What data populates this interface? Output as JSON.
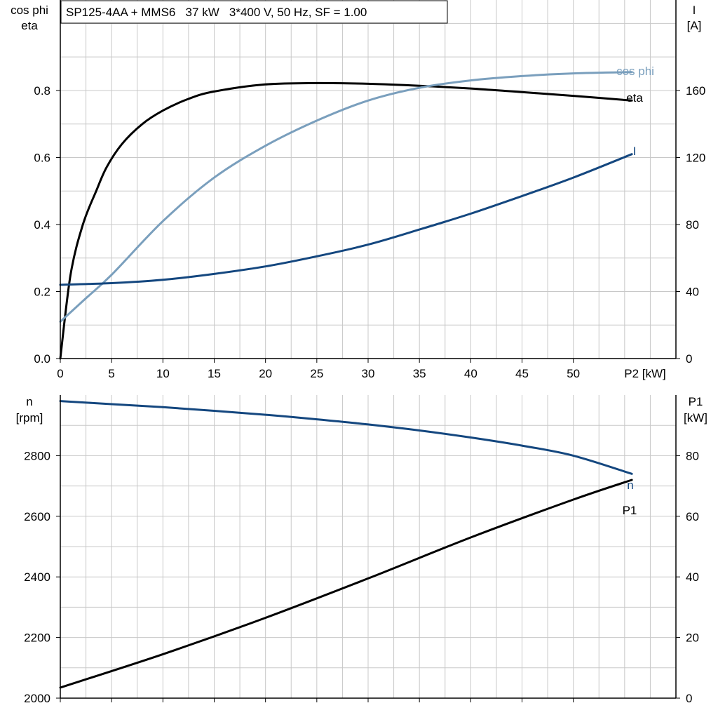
{
  "colors": {
    "background": "#ffffff",
    "grid": "#c8c8c8",
    "axis": "#000000",
    "black": "#000000",
    "dark_blue": "#14477f",
    "light_blue": "#7a9fbd"
  },
  "chart_data": [
    {
      "type": "line",
      "title": "SP125-4AA + MMS6   37 kW   3*400 V, 50 Hz, SF = 1.00",
      "xlabel": "P2 [kW]",
      "xlim": [
        0,
        60
      ],
      "x_ticks": [
        0,
        5,
        10,
        15,
        20,
        25,
        30,
        35,
        40,
        45,
        50
      ],
      "x_tick_labels": [
        "0",
        "5",
        "10",
        "15",
        "20",
        "25",
        "30",
        "35",
        "40",
        "45",
        "50"
      ],
      "y_left": {
        "label_line1": "cos phi",
        "label_line2": "eta",
        "lim": [
          0,
          1.07
        ],
        "ticks": [
          0,
          0.2,
          0.4,
          0.6,
          0.8
        ],
        "tick_labels": [
          "0.0",
          "0.2",
          "0.4",
          "0.6",
          "0.8"
        ]
      },
      "y_right": {
        "label_line1": "I",
        "label_line2": "[A]",
        "lim": [
          0,
          214
        ],
        "ticks": [
          0,
          40,
          80,
          120,
          160
        ],
        "tick_labels": [
          "0",
          "40",
          "80",
          "120",
          "160"
        ]
      },
      "grid": true,
      "series": [
        {
          "name": "eta",
          "axis": "left",
          "color": "#000000",
          "x": [
            0,
            1,
            2.2,
            3.5,
            4.5,
            6,
            8,
            10,
            12.5,
            15,
            20,
            25,
            30,
            35,
            40,
            45,
            50,
            55.7
          ],
          "y": [
            0,
            0.25,
            0.4,
            0.5,
            0.57,
            0.64,
            0.7,
            0.74,
            0.775,
            0.797,
            0.818,
            0.822,
            0.82,
            0.814,
            0.806,
            0.795,
            0.784,
            0.77
          ]
        },
        {
          "name": "cos phi",
          "axis": "left",
          "color": "#7a9fbd",
          "x": [
            0,
            2.5,
            5,
            10,
            15,
            20,
            25,
            30,
            35,
            40,
            45,
            50,
            55.7
          ],
          "y": [
            0.11,
            0.18,
            0.25,
            0.41,
            0.54,
            0.635,
            0.71,
            0.77,
            0.808,
            0.83,
            0.843,
            0.851,
            0.855
          ]
        },
        {
          "name": "I",
          "axis": "right",
          "color": "#14477f",
          "x": [
            0,
            5,
            10,
            15,
            20,
            25,
            30,
            35,
            40,
            45,
            50,
            55.7
          ],
          "y": [
            44,
            45,
            47,
            50.5,
            55,
            61,
            68,
            77,
            86.5,
            97,
            108,
            122
          ]
        }
      ]
    },
    {
      "type": "line",
      "xlim": [
        0,
        60
      ],
      "x_ticks": [
        0,
        5,
        10,
        15,
        20,
        25,
        30,
        35,
        40,
        45,
        50
      ],
      "y_left": {
        "label_line1": "n",
        "label_line2": "[rpm]",
        "lim": [
          2000,
          3000
        ],
        "ticks": [
          2000,
          2200,
          2400,
          2600,
          2800
        ],
        "tick_labels": [
          "2000",
          "2200",
          "2400",
          "2600",
          "2800"
        ]
      },
      "y_right": {
        "label_line1": "P1",
        "label_line2": "[kW]",
        "lim": [
          0,
          100
        ],
        "ticks": [
          0,
          20,
          40,
          60,
          80
        ],
        "tick_labels": [
          "0",
          "20",
          "40",
          "60",
          "80"
        ]
      },
      "grid": true,
      "series": [
        {
          "name": "n",
          "axis": "left",
          "color": "#14477f",
          "x": [
            0,
            5,
            10,
            15,
            20,
            25,
            30,
            35,
            40,
            45,
            50,
            55.7
          ],
          "y": [
            2980,
            2970,
            2960,
            2948,
            2935,
            2920,
            2903,
            2883,
            2860,
            2833,
            2800,
            2740
          ]
        },
        {
          "name": "P1",
          "axis": "right",
          "color": "#000000",
          "x": [
            0,
            10,
            20,
            30,
            40,
            50,
            55.7
          ],
          "y": [
            3.5,
            14.5,
            26.5,
            39.5,
            53,
            65.5,
            72
          ]
        }
      ]
    }
  ]
}
